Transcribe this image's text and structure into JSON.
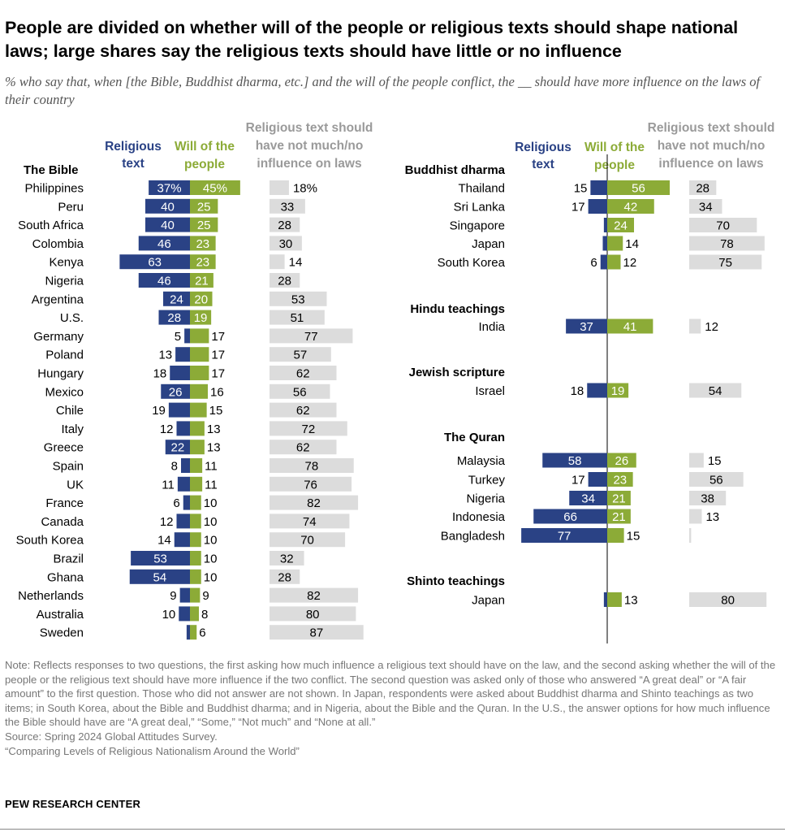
{
  "title": "People are divided on whether will of the people or religious texts should shape national laws; large shares say the religious texts should have little or no influence",
  "subtitle": "% who say that, when [the Bible, Buddhist dharma, etc.] and the will of the people conflict, the __ should have more influence on the laws of their country",
  "colors": {
    "religious": "#2a4285",
    "will": "#8cab37",
    "none": "#dcdcdc",
    "text": "#000000",
    "header_gray": "#9a9a9a"
  },
  "chart_data": {
    "type": "bar",
    "series": [
      {
        "name": "Religious text"
      },
      {
        "name": "Will of the people"
      },
      {
        "name": "Religious text should have not much/no influence on laws"
      }
    ],
    "legend": {
      "religious": "Religious text",
      "will": "Will of the people",
      "none": "Religious text should have not much/no influence on laws"
    },
    "panels": [
      {
        "groups": [
          {
            "name": "The Bible",
            "rows": [
              {
                "country": "Philippines",
                "religious": 37,
                "will": 45,
                "none": 18,
                "label_r": "37%",
                "label_w": "45%",
                "label_n": "18%"
              },
              {
                "country": "Peru",
                "religious": 40,
                "will": 25,
                "none": 33
              },
              {
                "country": "South Africa",
                "religious": 40,
                "will": 25,
                "none": 28
              },
              {
                "country": "Colombia",
                "religious": 46,
                "will": 23,
                "none": 30
              },
              {
                "country": "Kenya",
                "religious": 63,
                "will": 23,
                "none": 14
              },
              {
                "country": "Nigeria",
                "religious": 46,
                "will": 21,
                "none": 28
              },
              {
                "country": "Argentina",
                "religious": 24,
                "will": 20,
                "none": 53
              },
              {
                "country": "U.S.",
                "religious": 28,
                "will": 19,
                "none": 51
              },
              {
                "country": "Germany",
                "religious": 5,
                "will": 17,
                "none": 77
              },
              {
                "country": "Poland",
                "religious": 13,
                "will": 17,
                "none": 57
              },
              {
                "country": "Hungary",
                "religious": 18,
                "will": 17,
                "none": 62
              },
              {
                "country": "Mexico",
                "religious": 26,
                "will": 16,
                "none": 56
              },
              {
                "country": "Chile",
                "religious": 19,
                "will": 15,
                "none": 62
              },
              {
                "country": "Italy",
                "religious": 12,
                "will": 13,
                "none": 72
              },
              {
                "country": "Greece",
                "religious": 22,
                "will": 13,
                "none": 62
              },
              {
                "country": "Spain",
                "religious": 8,
                "will": 11,
                "none": 78
              },
              {
                "country": "UK",
                "religious": 11,
                "will": 11,
                "none": 76
              },
              {
                "country": "France",
                "religious": 6,
                "will": 10,
                "none": 82
              },
              {
                "country": "Canada",
                "religious": 12,
                "will": 10,
                "none": 74
              },
              {
                "country": "South Korea",
                "religious": 14,
                "will": 10,
                "none": 70
              },
              {
                "country": "Brazil",
                "religious": 53,
                "will": 10,
                "none": 32
              },
              {
                "country": "Ghana",
                "religious": 54,
                "will": 10,
                "none": 28
              },
              {
                "country": "Netherlands",
                "religious": 9,
                "will": 9,
                "none": 82
              },
              {
                "country": "Australia",
                "religious": 10,
                "will": 8,
                "none": 80
              },
              {
                "country": "Sweden",
                "religious": 3,
                "will": 6,
                "none": 87,
                "hide_r": true
              }
            ]
          }
        ]
      },
      {
        "groups": [
          {
            "name": "Buddhist dharma",
            "rows": [
              {
                "country": "Thailand",
                "religious": 15,
                "will": 56,
                "none": 28
              },
              {
                "country": "Sri Lanka",
                "religious": 17,
                "will": 42,
                "none": 34
              },
              {
                "country": "Singapore",
                "religious": 3,
                "will": 24,
                "none": 70,
                "hide_r": true
              },
              {
                "country": "Japan",
                "religious": 4,
                "will": 14,
                "none": 78,
                "hide_r": true
              },
              {
                "country": "South Korea",
                "religious": 6,
                "will": 12,
                "none": 75
              }
            ]
          },
          {
            "name": "Hindu teachings",
            "rows": [
              {
                "country": "India",
                "religious": 37,
                "will": 41,
                "none": 12
              }
            ]
          },
          {
            "name": "Jewish scripture",
            "rows": [
              {
                "country": "Israel",
                "religious": 18,
                "will": 19,
                "none": 54
              }
            ]
          },
          {
            "name": "The Quran",
            "rows": [
              {
                "country": "Malaysia",
                "religious": 58,
                "will": 26,
                "none": 15
              },
              {
                "country": "Turkey",
                "religious": 17,
                "will": 23,
                "none": 56
              },
              {
                "country": "Nigeria",
                "religious": 34,
                "will": 21,
                "none": 38
              },
              {
                "country": "Indonesia",
                "religious": 66,
                "will": 21,
                "none": 13
              },
              {
                "country": "Bangladesh",
                "religious": 77,
                "will": 15,
                "none": 2,
                "hide_n": true
              }
            ]
          },
          {
            "name": "Shinto teachings",
            "rows": [
              {
                "country": "Japan",
                "religious": 3,
                "will": 13,
                "none": 80,
                "hide_r": true
              }
            ]
          }
        ]
      }
    ]
  },
  "note": {
    "text": "Note: Reflects responses to two questions, the first asking how much influence a religious text should have on the law, and the second asking whether the will of the people or the religious text should have more influence if the two conflict. The second question was asked only of those who answered “A great deal” or “A fair amount” to the first question. Those who did not answer are not shown. In Japan, respondents were asked about Buddhist dharma and Shinto teachings as two items; in South Korea, about the Bible and Buddhist dharma; and in Nigeria, about the Bible and the Quran. In the U.S., the answer options for how much influence the Bible should have are “A great deal,” “Some,” “Not much” and “None at all.”",
    "source": "Source: Spring 2024 Global Attitudes Survey.",
    "report": "“Comparing Levels of Religious Nationalism Around the World”"
  },
  "brand": "PEW RESEARCH CENTER"
}
